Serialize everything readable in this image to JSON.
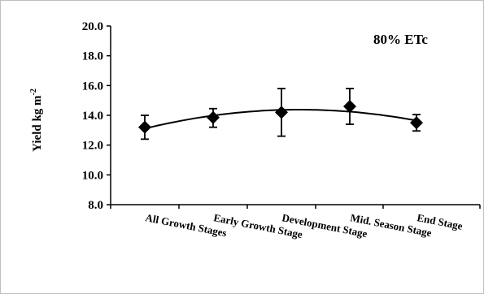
{
  "chart_data": {
    "type": "line",
    "title": "",
    "annotation": "80% ETc",
    "xlabel": "",
    "ylabel": "Yield kg m",
    "ylabel_superscript": "-2",
    "ylim": [
      8.0,
      20.0
    ],
    "yticks": [
      "8.0",
      "10.0",
      "12.0",
      "14.0",
      "16.0",
      "18.0",
      "20.0"
    ],
    "categories": [
      "All Growth Stages",
      "Early Growth Stage",
      "Development Stage",
      "Mid. Season Stage",
      "End Stage"
    ],
    "series": [
      {
        "values": [
          13.2,
          13.85,
          14.2,
          14.6,
          13.5
        ],
        "error_low": [
          12.4,
          13.2,
          12.6,
          13.4,
          12.95
        ],
        "error_high": [
          14.0,
          14.45,
          15.8,
          15.8,
          14.05
        ],
        "marker": "diamond",
        "color": "#000000"
      }
    ],
    "trendline": "polynomial",
    "grid": false,
    "legend": "none"
  }
}
